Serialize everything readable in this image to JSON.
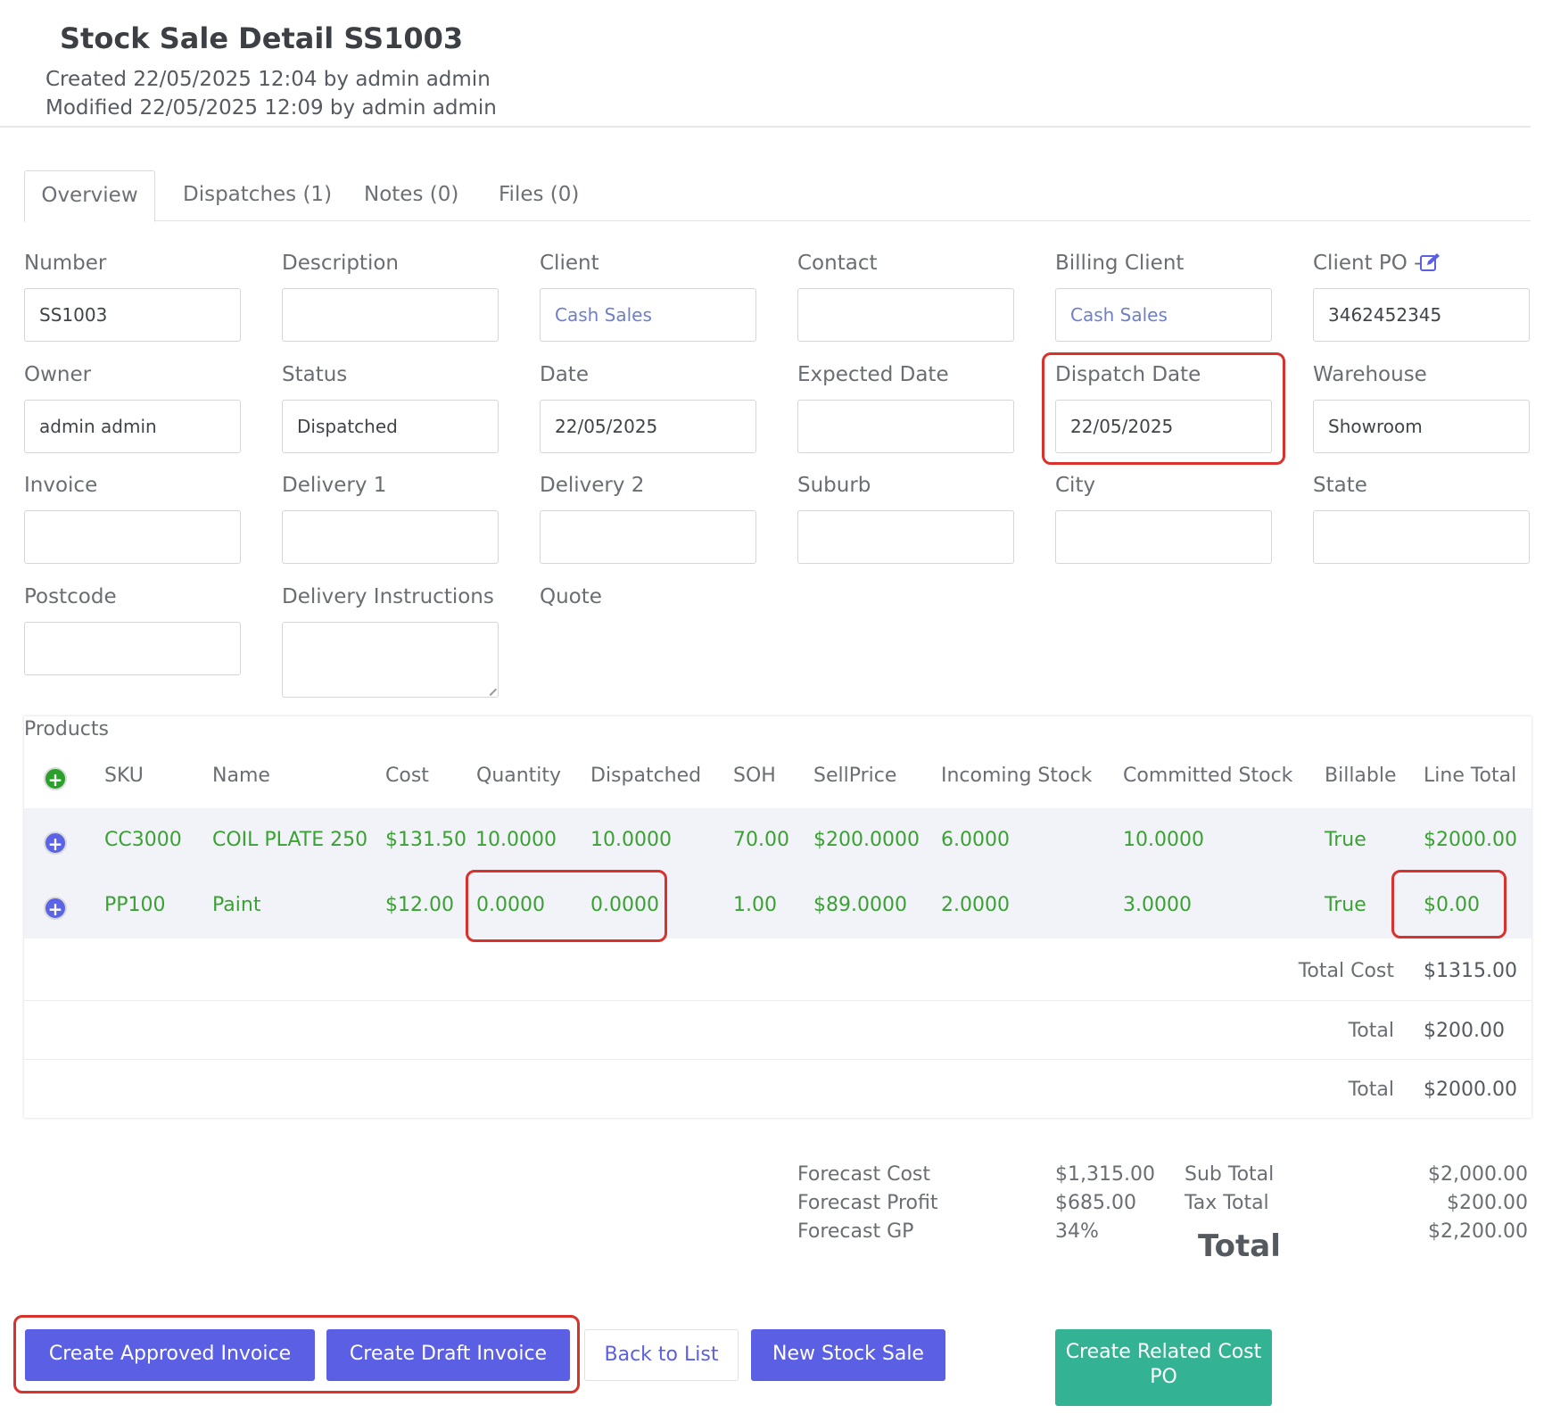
{
  "header": {
    "title": "Stock Sale Detail SS1003",
    "created": "Created 22/05/2025 12:04 by admin admin",
    "modified": "Modified 22/05/2025 12:09 by admin admin"
  },
  "tabs": [
    {
      "label": "Overview"
    },
    {
      "label": "Dispatches (1)"
    },
    {
      "label": "Notes (0)"
    },
    {
      "label": "Files (0)"
    }
  ],
  "fields": {
    "number": {
      "label": "Number",
      "value": "SS1003"
    },
    "description": {
      "label": "Description",
      "value": ""
    },
    "client": {
      "label": "Client",
      "value": "Cash Sales"
    },
    "contact": {
      "label": "Contact",
      "value": ""
    },
    "billing_client": {
      "label": "Billing Client",
      "value": "Cash Sales"
    },
    "client_po": {
      "label": "Client PO -",
      "value": "3462452345"
    },
    "owner": {
      "label": "Owner",
      "value": "admin admin"
    },
    "status": {
      "label": "Status",
      "value": "Dispatched"
    },
    "date": {
      "label": "Date",
      "value": "22/05/2025"
    },
    "expected_date": {
      "label": "Expected Date",
      "value": ""
    },
    "dispatch_date": {
      "label": "Dispatch Date",
      "value": "22/05/2025"
    },
    "warehouse": {
      "label": "Warehouse",
      "value": "Showroom"
    },
    "invoice": {
      "label": "Invoice",
      "value": ""
    },
    "delivery1": {
      "label": "Delivery 1",
      "value": ""
    },
    "delivery2": {
      "label": "Delivery 2",
      "value": ""
    },
    "suburb": {
      "label": "Suburb",
      "value": ""
    },
    "city": {
      "label": "City",
      "value": ""
    },
    "state": {
      "label": "State",
      "value": ""
    },
    "postcode": {
      "label": "Postcode",
      "value": ""
    },
    "delivery_instructions": {
      "label": "Delivery Instructions",
      "value": ""
    },
    "quote": {
      "label": "Quote"
    }
  },
  "products": {
    "title": "Products",
    "columns": [
      "SKU",
      "Name",
      "Cost",
      "Quantity",
      "Dispatched",
      "SOH",
      "SellPrice",
      "Incoming Stock",
      "Committed Stock",
      "Billable",
      "Line Total"
    ],
    "rows": [
      [
        "CC3000",
        "COIL PLATE 250",
        "$131.50",
        "10.0000",
        "10.0000",
        "70.00",
        "$200.0000",
        "6.0000",
        "10.0000",
        "True",
        "$2000.00"
      ],
      [
        "PP100",
        "Paint",
        "$12.00",
        "0.0000",
        "0.0000",
        "1.00",
        "$89.0000",
        "2.0000",
        "3.0000",
        "True",
        "$0.00"
      ]
    ],
    "summary": [
      {
        "label": "Total Cost",
        "value": "$1315.00"
      },
      {
        "label": "Total",
        "value": "$200.00"
      },
      {
        "label": "Total",
        "value": "$2000.00"
      }
    ]
  },
  "forecast": {
    "cost_label": "Forecast Cost",
    "cost_value": "$1,315.00",
    "profit_label": "Forecast Profit",
    "profit_value": "$685.00",
    "gp_label": "Forecast GP",
    "gp_value": "34%"
  },
  "totals": {
    "subtotal_label": "Sub Total",
    "subtotal_value": "$2,000.00",
    "tax_label": "Tax Total",
    "tax_value": "$200.00",
    "total_label": "Total",
    "total_value": "$2,200.00"
  },
  "buttons": {
    "approved_invoice": "Create Approved Invoice",
    "draft_invoice": "Create Draft Invoice",
    "back_to_list": "Back to List",
    "new_stock_sale": "New Stock Sale",
    "related_cost_po": "Create Related Cost PO"
  },
  "colors": {
    "primary": "#5b5fe3",
    "teal": "#33b393",
    "green_text": "#3aa133",
    "link": "#6f7fc7",
    "highlight": "#d9312c"
  },
  "icons": {
    "client_po_edit": "edit-icon",
    "add_product": "plus-icon",
    "expand_row": "plus-icon"
  }
}
